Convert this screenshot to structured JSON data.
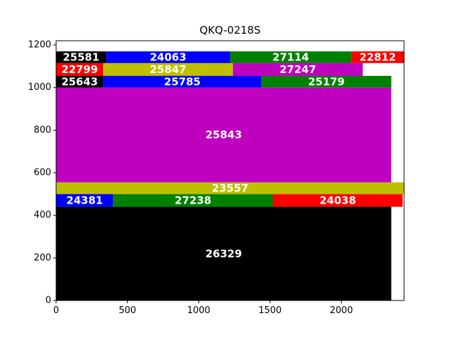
{
  "chart_data": {
    "type": "treemap",
    "title": "QKQ-0218S",
    "xlim": [
      0,
      2440
    ],
    "ylim": [
      0,
      1220
    ],
    "xticks": [
      0,
      500,
      1000,
      1500,
      2000
    ],
    "yticks": [
      0,
      200,
      400,
      600,
      800,
      1000,
      1200
    ],
    "grid": false,
    "colors": {
      "black": "#000000",
      "blue": "#0000ff",
      "green": "#008000",
      "red": "#ff0000",
      "olive": "#bfbf00",
      "magenta": "#bf00bf"
    },
    "rects": [
      {
        "label": "26329",
        "x0": 0,
        "x1": 2350,
        "y0": 0,
        "y1": 440,
        "color": "black"
      },
      {
        "label": "24381",
        "x0": 0,
        "x1": 400,
        "y0": 440,
        "y1": 500,
        "color": "blue"
      },
      {
        "label": "27238",
        "x0": 400,
        "x1": 1520,
        "y0": 440,
        "y1": 500,
        "color": "green"
      },
      {
        "label": "24038",
        "x0": 1520,
        "x1": 2430,
        "y0": 440,
        "y1": 500,
        "color": "red"
      },
      {
        "label": "23557",
        "x0": 0,
        "x1": 2440,
        "y0": 500,
        "y1": 555,
        "color": "olive"
      },
      {
        "label": "25843",
        "x0": 0,
        "x1": 2350,
        "y0": 555,
        "y1": 1000,
        "color": "magenta"
      },
      {
        "label": "25643",
        "x0": 0,
        "x1": 330,
        "y0": 1000,
        "y1": 1055,
        "color": "black"
      },
      {
        "label": "25785",
        "x0": 330,
        "x1": 1440,
        "y0": 1000,
        "y1": 1055,
        "color": "blue"
      },
      {
        "label": "25179",
        "x0": 1440,
        "x1": 2350,
        "y0": 1000,
        "y1": 1055,
        "color": "green"
      },
      {
        "label": "22799",
        "x0": 0,
        "x1": 330,
        "y0": 1055,
        "y1": 1115,
        "color": "red"
      },
      {
        "label": "25847",
        "x0": 330,
        "x1": 1240,
        "y0": 1055,
        "y1": 1115,
        "color": "olive"
      },
      {
        "label": "27247",
        "x0": 1240,
        "x1": 2150,
        "y0": 1055,
        "y1": 1115,
        "color": "magenta"
      },
      {
        "label": "25581",
        "x0": 0,
        "x1": 350,
        "y0": 1115,
        "y1": 1170,
        "color": "black"
      },
      {
        "label": "24063",
        "x0": 350,
        "x1": 1220,
        "y0": 1115,
        "y1": 1170,
        "color": "blue"
      },
      {
        "label": "27114",
        "x0": 1220,
        "x1": 2070,
        "y0": 1115,
        "y1": 1170,
        "color": "green"
      },
      {
        "label": "22812",
        "x0": 2070,
        "x1": 2440,
        "y0": 1115,
        "y1": 1170,
        "color": "red"
      }
    ]
  }
}
